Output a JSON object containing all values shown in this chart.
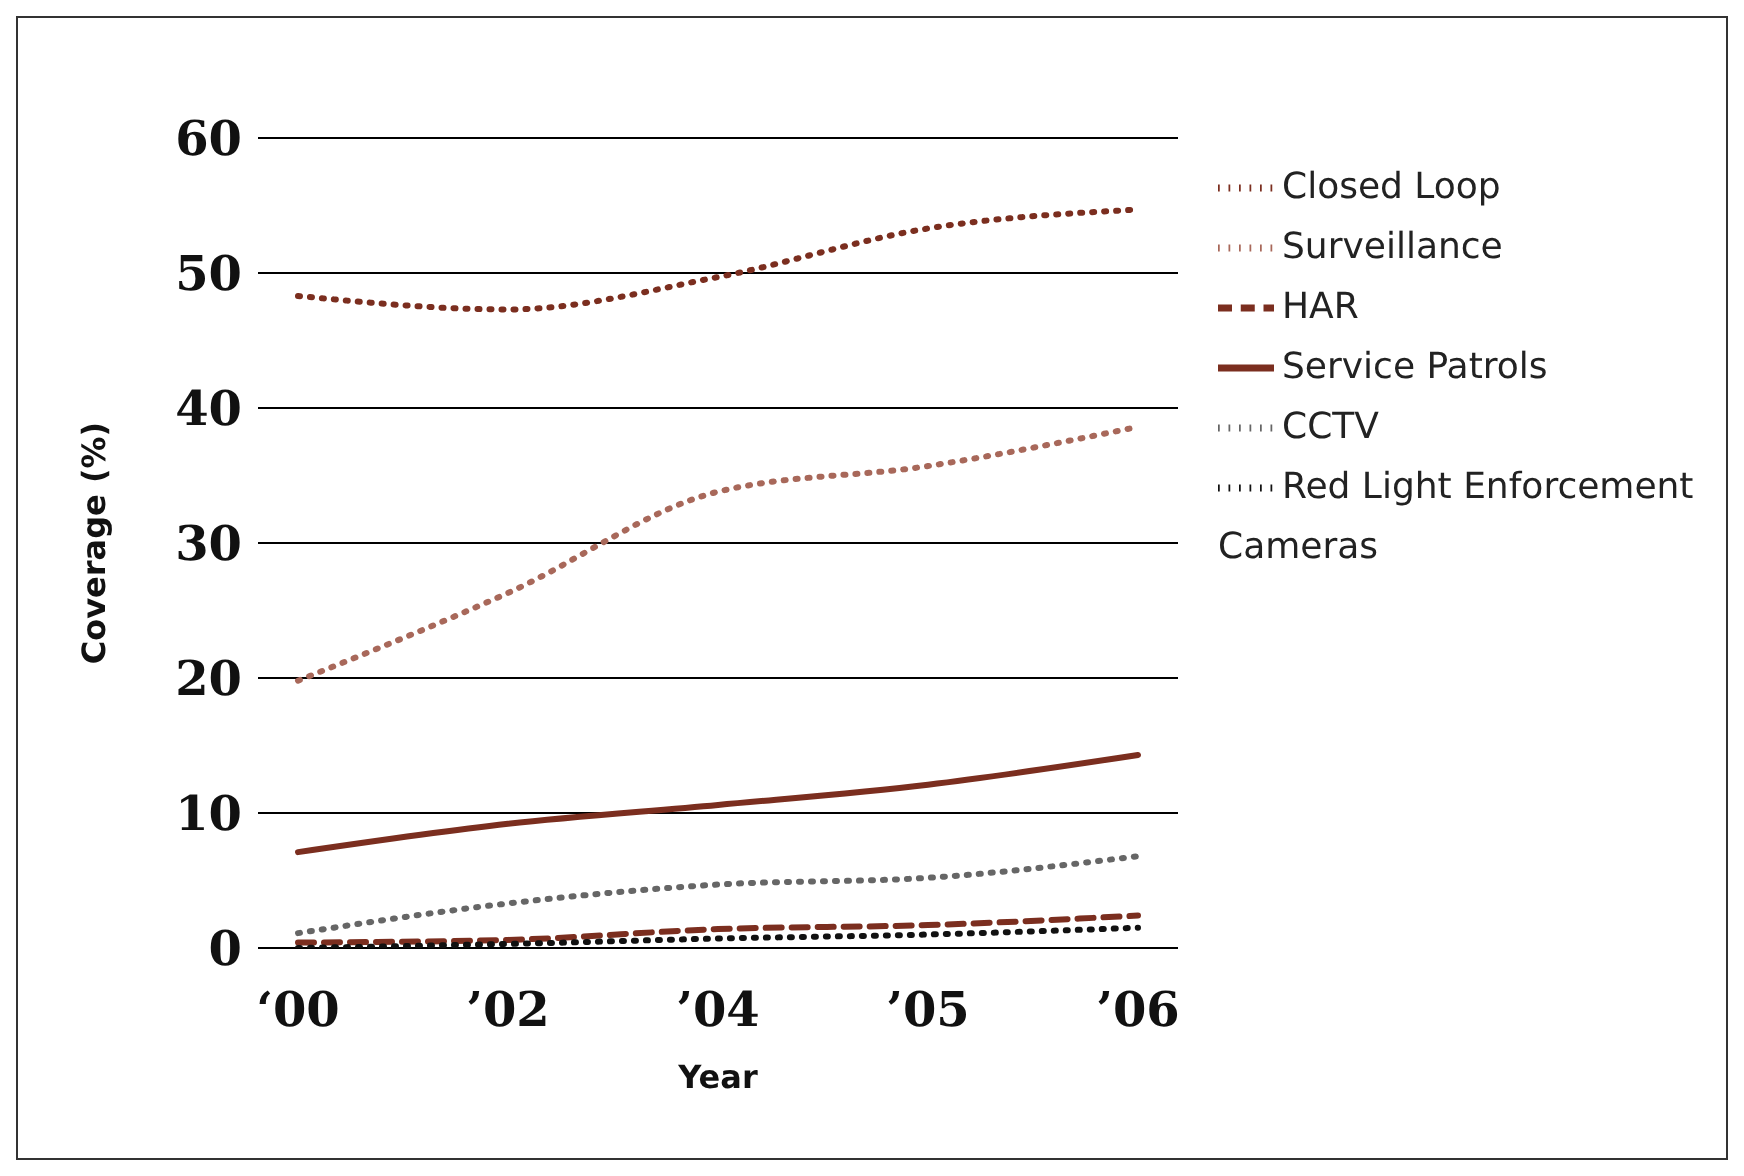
{
  "chart_data": {
    "type": "line",
    "xlabel": "Year",
    "ylabel": "Coverage (%)",
    "categories": [
      "‘00",
      "’02",
      "’04",
      "’05",
      "’06"
    ],
    "series": [
      {
        "name": "Closed Loop",
        "color": "#7b2e1f",
        "line_style": "dotted",
        "values": [
          48.3,
          47.3,
          49.7,
          53.3,
          54.7
        ]
      },
      {
        "name": "Surveillance",
        "color": "#a8685a",
        "line_style": "dotted",
        "values": [
          19.8,
          26.3,
          33.8,
          35.7,
          38.6
        ]
      },
      {
        "name": "HAR",
        "color": "#7b2e1f",
        "line_style": "dashed",
        "values": [
          0.4,
          0.6,
          1.4,
          1.7,
          2.4
        ]
      },
      {
        "name": "Service Patrols",
        "color": "#7b2e1f",
        "line_style": "solid",
        "values": [
          7.1,
          9.2,
          10.6,
          12.1,
          14.3
        ]
      },
      {
        "name": "CCTV",
        "color": "#666666",
        "line_style": "dotted",
        "values": [
          1.1,
          3.3,
          4.7,
          5.2,
          6.8
        ]
      },
      {
        "name": "Red Light Enforcement Cameras",
        "color": "#111111",
        "line_style": "dotted",
        "values": [
          0,
          0.3,
          0.7,
          1,
          1.5
        ]
      }
    ],
    "ylim": [
      0,
      60
    ],
    "yticks": [
      0,
      10,
      20,
      30,
      40,
      50,
      60
    ],
    "grid": "y",
    "legend": "right",
    "marker": "none"
  }
}
